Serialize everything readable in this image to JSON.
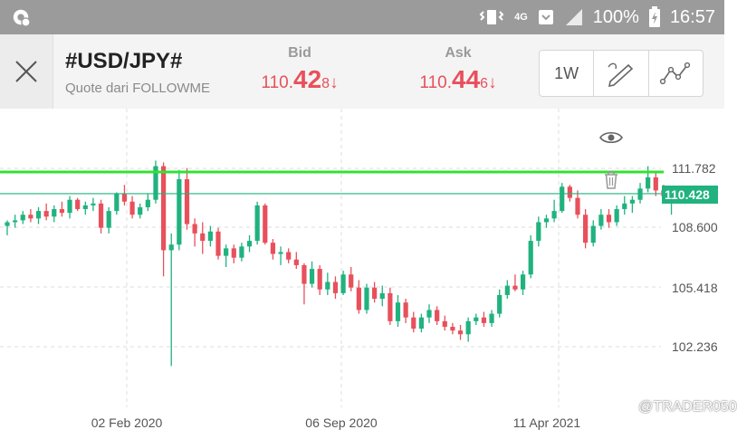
{
  "status_bar": {
    "network": "4G",
    "battery": "100%",
    "time": "16:57"
  },
  "header": {
    "symbol": "#USD/JPY#",
    "quote_source": "Quote dari FOLLOWME",
    "bid": {
      "label": "Bid",
      "main": "110.",
      "big": "42",
      "small": "8",
      "arrow": "↓"
    },
    "ask": {
      "label": "Ask",
      "main": "110.",
      "big": "44",
      "small": "6",
      "arrow": "↓"
    },
    "toolbar": {
      "timeframe": "1W"
    }
  },
  "chart_data": {
    "type": "candlestick",
    "interval": "1W",
    "y_ticks": [
      "111.782",
      "108.600",
      "105.418",
      "102.236"
    ],
    "x_ticks": [
      "02 Feb 2020",
      "06 Sep 2020",
      "11 Apr 2021"
    ],
    "current_price": "110.428",
    "horizontal_line": 111.782,
    "colors": {
      "up": "#20b27f",
      "down": "#e8505b",
      "price_line": "#20b27f",
      "h_line": "#33e033"
    },
    "candles": [
      [
        108.7,
        109.0,
        108.2,
        108.9
      ],
      [
        108.9,
        109.3,
        108.6,
        109.0
      ],
      [
        109.0,
        109.5,
        108.8,
        109.3
      ],
      [
        109.3,
        109.6,
        108.9,
        109.1
      ],
      [
        109.1,
        109.7,
        108.8,
        109.5
      ],
      [
        109.5,
        109.9,
        109.0,
        109.2
      ],
      [
        109.2,
        109.8,
        108.9,
        109.6
      ],
      [
        109.6,
        110.0,
        109.2,
        109.4
      ],
      [
        109.4,
        110.3,
        109.1,
        110.1
      ],
      [
        110.1,
        110.2,
        109.5,
        109.6
      ],
      [
        109.6,
        110.0,
        109.3,
        109.8
      ],
      [
        109.8,
        110.2,
        109.5,
        109.9
      ],
      [
        109.9,
        110.1,
        108.3,
        108.6
      ],
      [
        108.6,
        109.7,
        108.3,
        109.5
      ],
      [
        109.5,
        110.5,
        109.3,
        110.4
      ],
      [
        110.4,
        110.9,
        109.8,
        110.0
      ],
      [
        110.0,
        110.3,
        109.1,
        109.3
      ],
      [
        109.3,
        109.9,
        109.1,
        109.7
      ],
      [
        109.7,
        110.4,
        109.5,
        110.1
      ],
      [
        110.1,
        112.2,
        109.9,
        111.9
      ],
      [
        111.9,
        112.1,
        106.0,
        107.4
      ],
      [
        107.4,
        108.3,
        101.2,
        107.7
      ],
      [
        107.7,
        111.7,
        107.4,
        111.2
      ],
      [
        111.2,
        111.8,
        108.5,
        108.8
      ],
      [
        108.8,
        109.1,
        107.6,
        108.3
      ],
      [
        108.3,
        108.9,
        107.2,
        107.9
      ],
      [
        107.9,
        108.7,
        107.6,
        108.4
      ],
      [
        108.4,
        108.6,
        106.9,
        107.1
      ],
      [
        107.1,
        107.7,
        106.5,
        107.5
      ],
      [
        107.5,
        107.7,
        106.7,
        107.0
      ],
      [
        107.0,
        107.8,
        106.8,
        107.6
      ],
      [
        107.6,
        108.2,
        107.3,
        107.9
      ],
      [
        107.9,
        110.0,
        107.7,
        109.8
      ],
      [
        109.8,
        109.9,
        107.7,
        107.8
      ],
      [
        107.8,
        108.0,
        106.9,
        107.2
      ],
      [
        107.2,
        107.6,
        106.6,
        107.3
      ],
      [
        107.3,
        107.5,
        106.7,
        106.9
      ],
      [
        106.9,
        107.3,
        106.4,
        106.6
      ],
      [
        106.6,
        106.7,
        104.5,
        105.6
      ],
      [
        105.6,
        106.8,
        105.4,
        106.4
      ],
      [
        106.4,
        106.6,
        105.0,
        105.3
      ],
      [
        105.3,
        106.2,
        105.0,
        105.7
      ],
      [
        105.7,
        106.0,
        104.8,
        105.1
      ],
      [
        105.1,
        106.3,
        105.0,
        106.1
      ],
      [
        106.1,
        106.5,
        105.2,
        105.4
      ],
      [
        105.4,
        105.8,
        104.0,
        104.2
      ],
      [
        104.2,
        105.6,
        104.0,
        105.4
      ],
      [
        105.4,
        105.7,
        104.6,
        104.8
      ],
      [
        104.8,
        105.5,
        104.4,
        105.1
      ],
      [
        105.1,
        105.4,
        103.4,
        103.6
      ],
      [
        103.6,
        105.0,
        103.3,
        104.6
      ],
      [
        104.6,
        104.8,
        103.5,
        103.8
      ],
      [
        103.8,
        104.1,
        103.0,
        103.2
      ],
      [
        103.2,
        104.0,
        103.0,
        103.8
      ],
      [
        103.8,
        104.5,
        103.5,
        104.2
      ],
      [
        104.2,
        104.4,
        103.4,
        103.6
      ],
      [
        103.6,
        103.9,
        103.1,
        103.3
      ],
      [
        103.3,
        103.5,
        102.9,
        103.1
      ],
      [
        103.1,
        103.4,
        102.6,
        102.9
      ],
      [
        102.9,
        103.8,
        102.5,
        103.6
      ],
      [
        103.6,
        104.0,
        103.4,
        103.8
      ],
      [
        103.8,
        104.1,
        103.3,
        103.5
      ],
      [
        103.5,
        104.2,
        103.3,
        104.0
      ],
      [
        104.0,
        105.3,
        103.8,
        105.0
      ],
      [
        105.0,
        105.8,
        104.8,
        105.5
      ],
      [
        105.5,
        106.1,
        105.2,
        105.3
      ],
      [
        105.3,
        106.3,
        105.0,
        106.1
      ],
      [
        106.1,
        108.2,
        105.9,
        107.9
      ],
      [
        107.9,
        109.2,
        107.6,
        108.9
      ],
      [
        108.9,
        109.3,
        108.6,
        109.1
      ],
      [
        109.1,
        110.1,
        108.9,
        109.5
      ],
      [
        109.5,
        111.0,
        109.4,
        110.8
      ],
      [
        110.8,
        110.9,
        110.0,
        110.2
      ],
      [
        110.2,
        110.6,
        109.1,
        109.3
      ],
      [
        109.3,
        109.6,
        107.5,
        107.8
      ],
      [
        107.8,
        109.0,
        107.6,
        108.7
      ],
      [
        108.7,
        109.6,
        108.5,
        109.3
      ],
      [
        109.3,
        109.6,
        108.6,
        108.9
      ],
      [
        108.9,
        109.8,
        108.7,
        109.6
      ],
      [
        109.6,
        110.3,
        109.3,
        109.9
      ],
      [
        109.9,
        110.3,
        109.4,
        110.1
      ],
      [
        110.1,
        111.0,
        109.9,
        110.7
      ],
      [
        110.7,
        111.9,
        110.5,
        111.3
      ],
      [
        111.3,
        111.6,
        110.3,
        110.6
      ],
      [
        110.6,
        110.9,
        110.1,
        110.3
      ],
      [
        110.3,
        110.6,
        109.3,
        110.428
      ]
    ]
  },
  "watermark": "@TRADER050"
}
